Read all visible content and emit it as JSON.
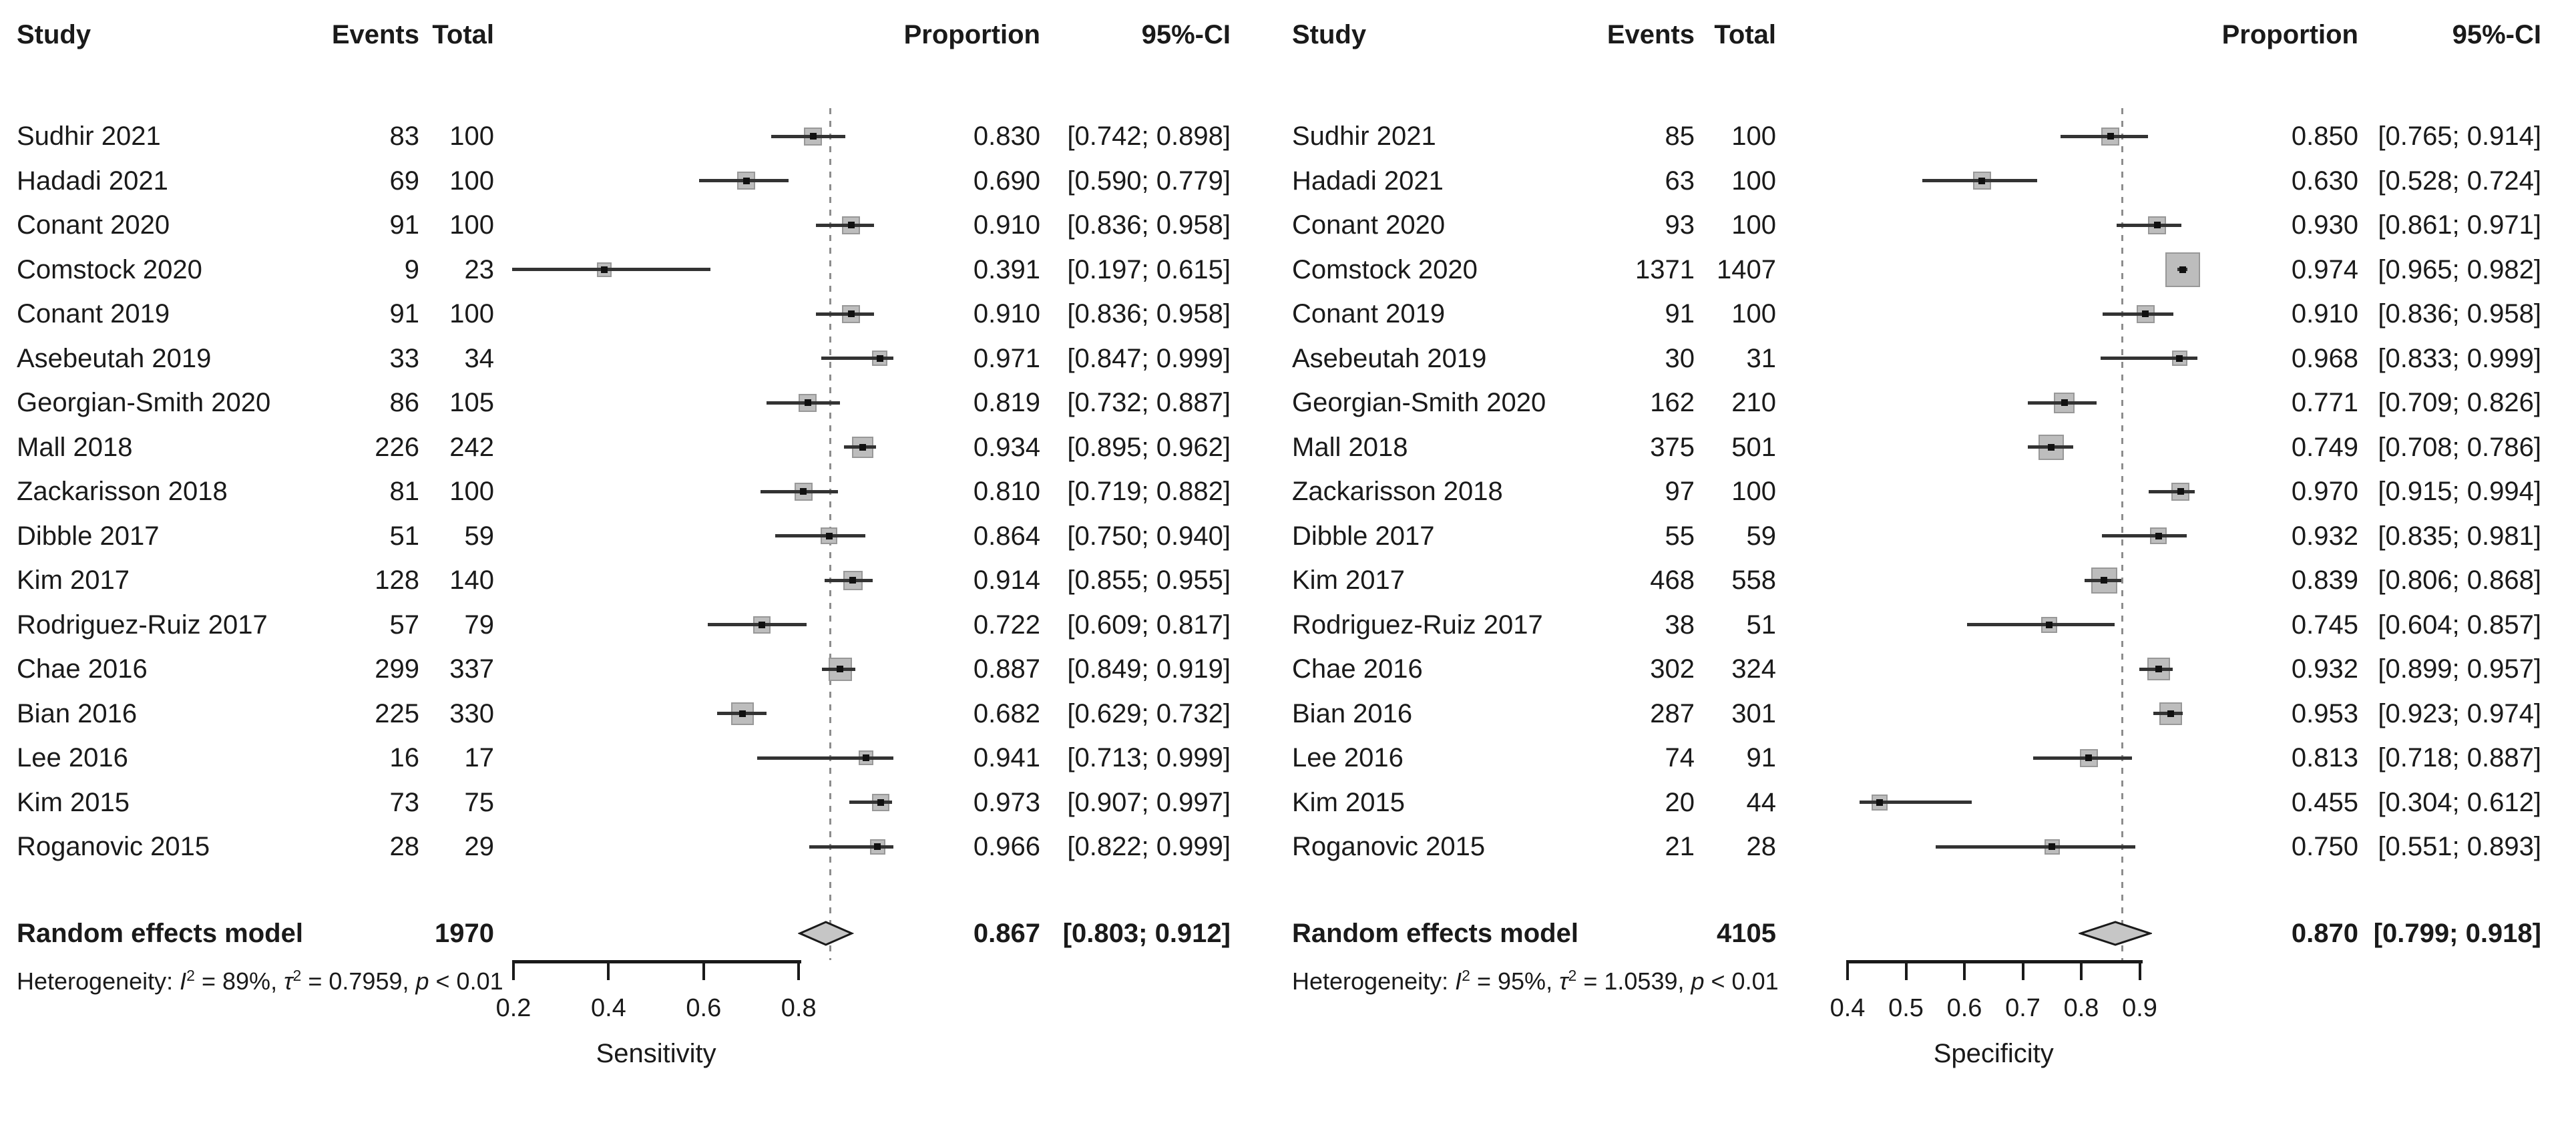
{
  "figure": {
    "description": "Paired forest plots of meta-analysis of diagnostic accuracy (random effects model)",
    "background_color": "#ffffff",
    "colors": {
      "text": "#1a1a1a",
      "ci_line": "#333333",
      "weight_square_fill": "#bdbdbd",
      "weight_square_border": "#989898",
      "point_marker": "#111111",
      "diamond_fill": "#c6c6c6",
      "diamond_border": "#1a1a1a",
      "dotted_reference_line": "#8d8d8d",
      "axis": "#1a1a1a"
    }
  },
  "chart_data": [
    {
      "type": "forest",
      "outcome": "Sensitivity",
      "columns": {
        "study": "Study",
        "events": "Events",
        "total": "Total",
        "proportion": "Proportion",
        "ci": "95%-CI"
      },
      "axis": {
        "label": "Sensitivity",
        "ticks": [
          0.2,
          0.4,
          0.6,
          0.8
        ],
        "range": [
          0.2,
          0.8
        ],
        "reference_line": 0.867
      },
      "studies": [
        {
          "study": "Sudhir 2021",
          "events": 83,
          "total": 100,
          "proportion": 0.83,
          "proportion_text": "0.830",
          "ci_low": 0.742,
          "ci_high": 0.898,
          "ci_text": "[0.742; 0.898]"
        },
        {
          "study": "Hadadi 2021",
          "events": 69,
          "total": 100,
          "proportion": 0.69,
          "proportion_text": "0.690",
          "ci_low": 0.59,
          "ci_high": 0.779,
          "ci_text": "[0.590; 0.779]"
        },
        {
          "study": "Conant 2020",
          "events": 91,
          "total": 100,
          "proportion": 0.91,
          "proportion_text": "0.910",
          "ci_low": 0.836,
          "ci_high": 0.958,
          "ci_text": "[0.836; 0.958]"
        },
        {
          "study": "Comstock 2020",
          "events": 9,
          "total": 23,
          "proportion": 0.391,
          "proportion_text": "0.391",
          "ci_low": 0.197,
          "ci_high": 0.615,
          "ci_text": "[0.197; 0.615]"
        },
        {
          "study": "Conant 2019",
          "events": 91,
          "total": 100,
          "proportion": 0.91,
          "proportion_text": "0.910",
          "ci_low": 0.836,
          "ci_high": 0.958,
          "ci_text": "[0.836; 0.958]"
        },
        {
          "study": "Asebeutah 2019",
          "events": 33,
          "total": 34,
          "proportion": 0.971,
          "proportion_text": "0.971",
          "ci_low": 0.847,
          "ci_high": 0.999,
          "ci_text": "[0.847; 0.999]"
        },
        {
          "study": "Georgian-Smith 2020",
          "events": 86,
          "total": 105,
          "proportion": 0.819,
          "proportion_text": "0.819",
          "ci_low": 0.732,
          "ci_high": 0.887,
          "ci_text": "[0.732; 0.887]"
        },
        {
          "study": "Mall 2018",
          "events": 226,
          "total": 242,
          "proportion": 0.934,
          "proportion_text": "0.934",
          "ci_low": 0.895,
          "ci_high": 0.962,
          "ci_text": "[0.895; 0.962]"
        },
        {
          "study": "Zackarisson 2018",
          "events": 81,
          "total": 100,
          "proportion": 0.81,
          "proportion_text": "0.810",
          "ci_low": 0.719,
          "ci_high": 0.882,
          "ci_text": "[0.719; 0.882]"
        },
        {
          "study": "Dibble 2017",
          "events": 51,
          "total": 59,
          "proportion": 0.864,
          "proportion_text": "0.864",
          "ci_low": 0.75,
          "ci_high": 0.94,
          "ci_text": "[0.750; 0.940]"
        },
        {
          "study": "Kim 2017",
          "events": 128,
          "total": 140,
          "proportion": 0.914,
          "proportion_text": "0.914",
          "ci_low": 0.855,
          "ci_high": 0.955,
          "ci_text": "[0.855; 0.955]"
        },
        {
          "study": "Rodriguez-Ruiz 2017",
          "events": 57,
          "total": 79,
          "proportion": 0.722,
          "proportion_text": "0.722",
          "ci_low": 0.609,
          "ci_high": 0.817,
          "ci_text": "[0.609; 0.817]"
        },
        {
          "study": "Chae 2016",
          "events": 299,
          "total": 337,
          "proportion": 0.887,
          "proportion_text": "0.887",
          "ci_low": 0.849,
          "ci_high": 0.919,
          "ci_text": "[0.849; 0.919]"
        },
        {
          "study": "Bian 2016",
          "events": 225,
          "total": 330,
          "proportion": 0.682,
          "proportion_text": "0.682",
          "ci_low": 0.629,
          "ci_high": 0.732,
          "ci_text": "[0.629; 0.732]"
        },
        {
          "study": "Lee 2016",
          "events": 16,
          "total": 17,
          "proportion": 0.941,
          "proportion_text": "0.941",
          "ci_low": 0.713,
          "ci_high": 0.999,
          "ci_text": "[0.713; 0.999]"
        },
        {
          "study": "Kim 2015",
          "events": 73,
          "total": 75,
          "proportion": 0.973,
          "proportion_text": "0.973",
          "ci_low": 0.907,
          "ci_high": 0.997,
          "ci_text": "[0.907; 0.997]"
        },
        {
          "study": "Roganovic 2015",
          "events": 28,
          "total": 29,
          "proportion": 0.966,
          "proportion_text": "0.966",
          "ci_low": 0.822,
          "ci_high": 0.999,
          "ci_text": "[0.822; 0.999]"
        }
      ],
      "summary": {
        "label": "Random effects model",
        "total": 1970,
        "proportion": 0.867,
        "proportion_text": "0.867",
        "ci_low": 0.803,
        "ci_high": 0.912,
        "ci_text": "[0.803; 0.912]"
      },
      "heterogeneity": {
        "label": "Heterogeneity: ",
        "i_sym": "I",
        "tau_sym": "τ",
        "p_sym": "p",
        "sup": "2",
        "eq": " = ",
        "sep": ", ",
        "i2": "89%",
        "tau2": "0.7959",
        "p": " < 0.01"
      }
    },
    {
      "type": "forest",
      "outcome": "Specificity",
      "columns": {
        "study": "Study",
        "events": "Events",
        "total": "Total",
        "proportion": "Proportion",
        "ci": "95%-CI"
      },
      "axis": {
        "label": "Specificity",
        "ticks": [
          0.4,
          0.5,
          0.6,
          0.7,
          0.8,
          0.9
        ],
        "range": [
          0.4,
          0.9
        ],
        "reference_line": 0.87
      },
      "studies": [
        {
          "study": "Sudhir 2021",
          "events": 85,
          "total": 100,
          "proportion": 0.85,
          "proportion_text": "0.850",
          "ci_low": 0.765,
          "ci_high": 0.914,
          "ci_text": "[0.765; 0.914]"
        },
        {
          "study": "Hadadi 2021",
          "events": 63,
          "total": 100,
          "proportion": 0.63,
          "proportion_text": "0.630",
          "ci_low": 0.528,
          "ci_high": 0.724,
          "ci_text": "[0.528; 0.724]"
        },
        {
          "study": "Conant 2020",
          "events": 93,
          "total": 100,
          "proportion": 0.93,
          "proportion_text": "0.930",
          "ci_low": 0.861,
          "ci_high": 0.971,
          "ci_text": "[0.861; 0.971]"
        },
        {
          "study": "Comstock 2020",
          "events": 1371,
          "total": 1407,
          "proportion": 0.974,
          "proportion_text": "0.974",
          "ci_low": 0.965,
          "ci_high": 0.982,
          "ci_text": "[0.965; 0.982]"
        },
        {
          "study": "Conant 2019",
          "events": 91,
          "total": 100,
          "proportion": 0.91,
          "proportion_text": "0.910",
          "ci_low": 0.836,
          "ci_high": 0.958,
          "ci_text": "[0.836; 0.958]"
        },
        {
          "study": "Asebeutah 2019",
          "events": 30,
          "total": 31,
          "proportion": 0.968,
          "proportion_text": "0.968",
          "ci_low": 0.833,
          "ci_high": 0.999,
          "ci_text": "[0.833; 0.999]"
        },
        {
          "study": "Georgian-Smith 2020",
          "events": 162,
          "total": 210,
          "proportion": 0.771,
          "proportion_text": "0.771",
          "ci_low": 0.709,
          "ci_high": 0.826,
          "ci_text": "[0.709; 0.826]"
        },
        {
          "study": "Mall 2018",
          "events": 375,
          "total": 501,
          "proportion": 0.749,
          "proportion_text": "0.749",
          "ci_low": 0.708,
          "ci_high": 0.786,
          "ci_text": "[0.708; 0.786]"
        },
        {
          "study": "Zackarisson 2018",
          "events": 97,
          "total": 100,
          "proportion": 0.97,
          "proportion_text": "0.970",
          "ci_low": 0.915,
          "ci_high": 0.994,
          "ci_text": "[0.915; 0.994]"
        },
        {
          "study": "Dibble 2017",
          "events": 55,
          "total": 59,
          "proportion": 0.932,
          "proportion_text": "0.932",
          "ci_low": 0.835,
          "ci_high": 0.981,
          "ci_text": "[0.835; 0.981]"
        },
        {
          "study": "Kim 2017",
          "events": 468,
          "total": 558,
          "proportion": 0.839,
          "proportion_text": "0.839",
          "ci_low": 0.806,
          "ci_high": 0.868,
          "ci_text": "[0.806; 0.868]"
        },
        {
          "study": "Rodriguez-Ruiz 2017",
          "events": 38,
          "total": 51,
          "proportion": 0.745,
          "proportion_text": "0.745",
          "ci_low": 0.604,
          "ci_high": 0.857,
          "ci_text": "[0.604; 0.857]"
        },
        {
          "study": "Chae 2016",
          "events": 302,
          "total": 324,
          "proportion": 0.932,
          "proportion_text": "0.932",
          "ci_low": 0.899,
          "ci_high": 0.957,
          "ci_text": "[0.899; 0.957]"
        },
        {
          "study": "Bian 2016",
          "events": 287,
          "total": 301,
          "proportion": 0.953,
          "proportion_text": "0.953",
          "ci_low": 0.923,
          "ci_high": 0.974,
          "ci_text": "[0.923; 0.974]"
        },
        {
          "study": "Lee 2016",
          "events": 74,
          "total": 91,
          "proportion": 0.813,
          "proportion_text": "0.813",
          "ci_low": 0.718,
          "ci_high": 0.887,
          "ci_text": "[0.718; 0.887]"
        },
        {
          "study": "Kim 2015",
          "events": 20,
          "total": 44,
          "proportion": 0.455,
          "proportion_text": "0.455",
          "ci_low": 0.304,
          "ci_high": 0.612,
          "ci_text": "[0.304; 0.612]"
        },
        {
          "study": "Roganovic 2015",
          "events": 21,
          "total": 28,
          "proportion": 0.75,
          "proportion_text": "0.750",
          "ci_low": 0.551,
          "ci_high": 0.893,
          "ci_text": "[0.551; 0.893]"
        }
      ],
      "summary": {
        "label": "Random effects model",
        "total": 4105,
        "proportion": 0.87,
        "proportion_text": "0.870",
        "ci_low": 0.799,
        "ci_high": 0.918,
        "ci_text": "[0.799; 0.918]"
      },
      "heterogeneity": {
        "label": "Heterogeneity: ",
        "i_sym": "I",
        "tau_sym": "τ",
        "p_sym": "p",
        "sup": "2",
        "eq": " = ",
        "sep": ", ",
        "i2": "95%",
        "tau2": "1.0539",
        "p": " < 0.01"
      }
    }
  ]
}
